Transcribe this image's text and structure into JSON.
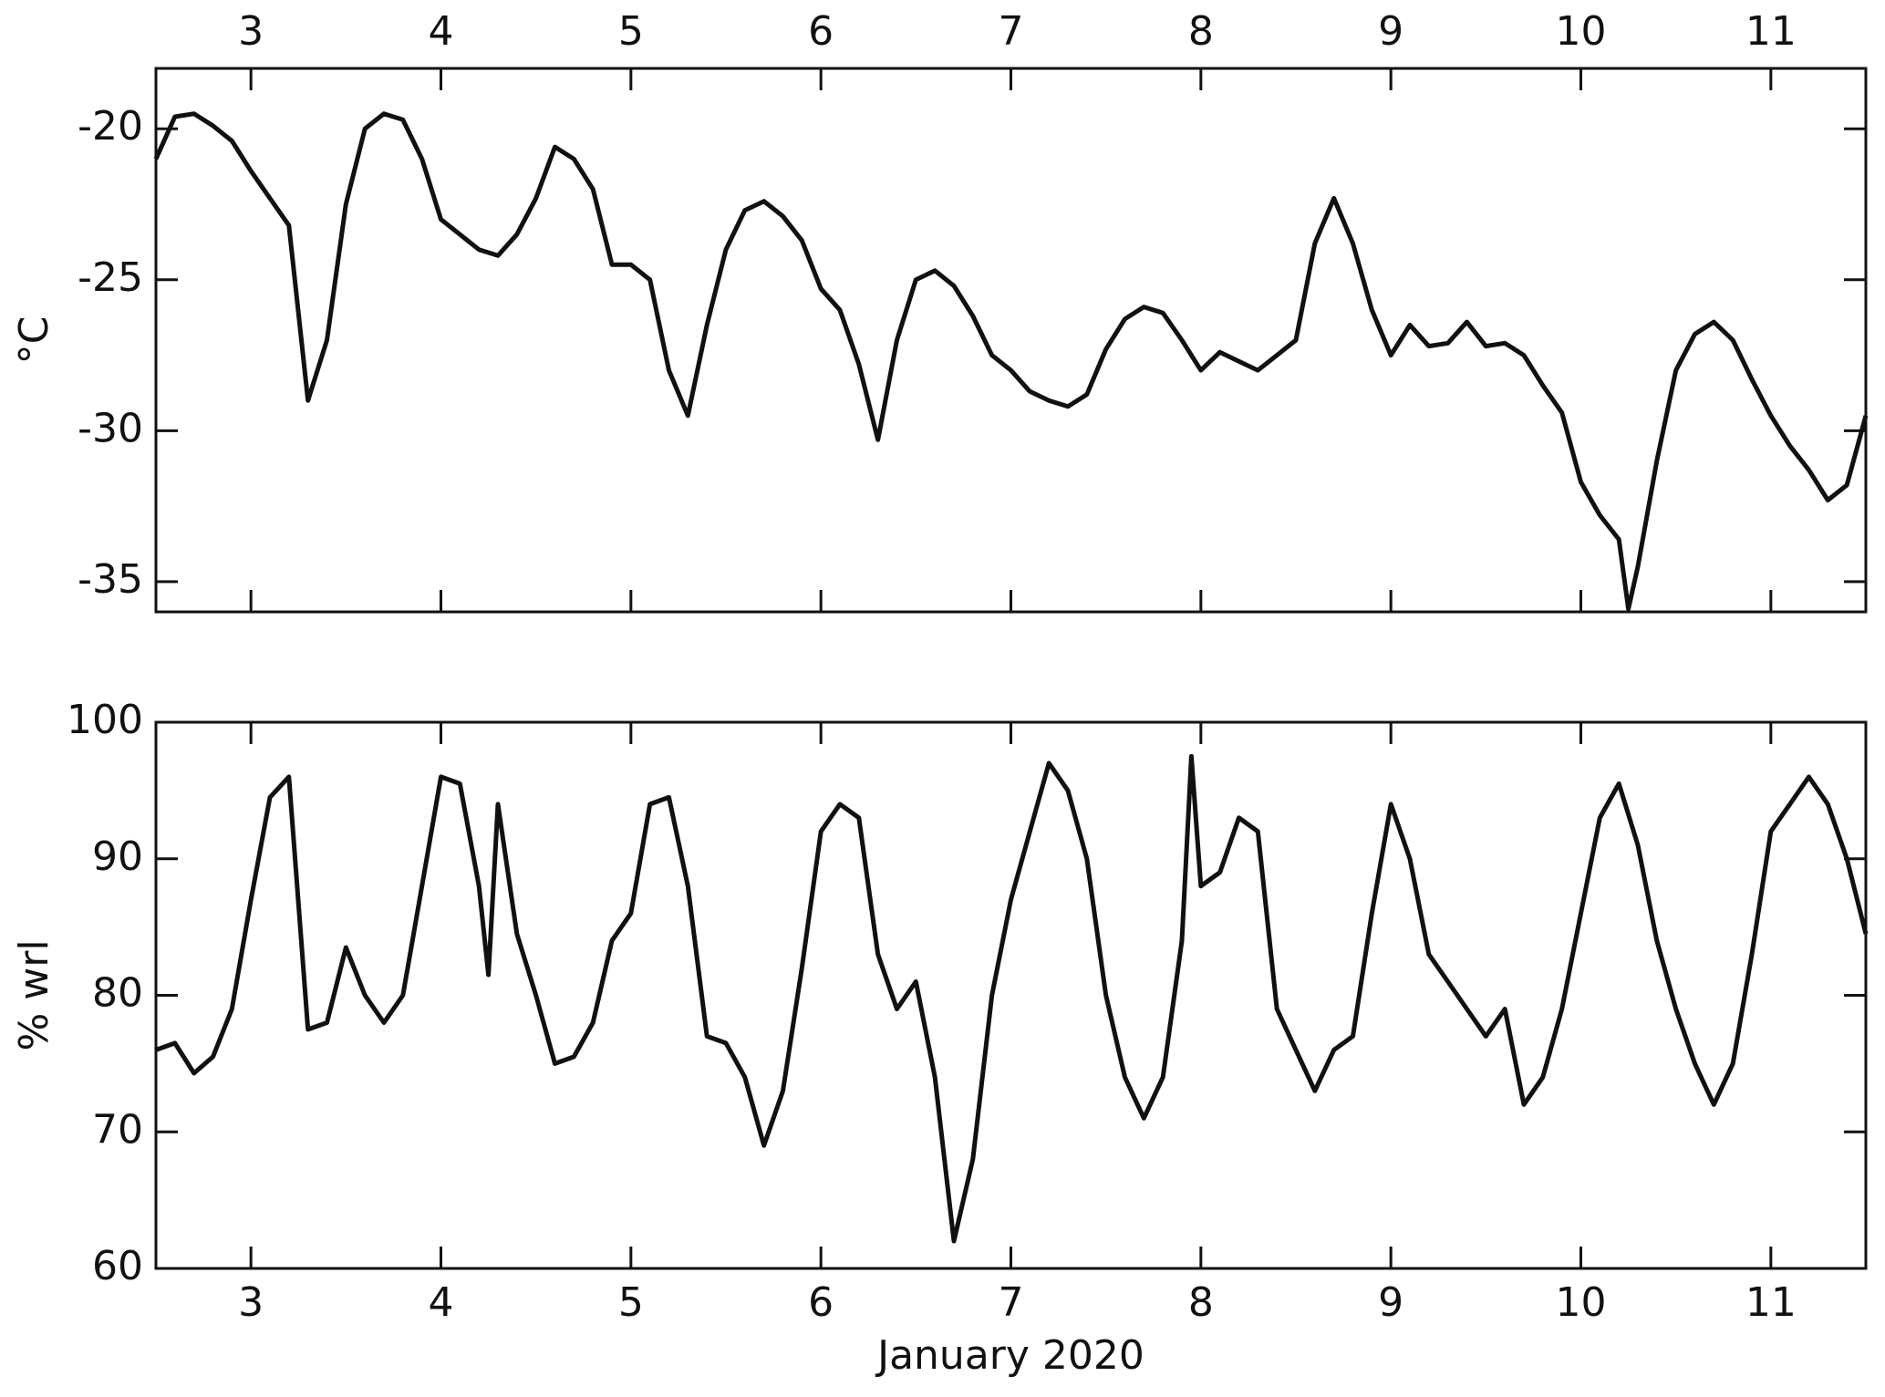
{
  "chart_data": [
    {
      "type": "line",
      "ylabel": "°C",
      "xtick_position": "top",
      "xlim": [
        2.5,
        11.5
      ],
      "xticks": [
        3,
        4,
        5,
        6,
        7,
        8,
        9,
        10,
        11
      ],
      "ylim": [
        -36,
        -18
      ],
      "yticks": [
        -20,
        -25,
        -30,
        -35
      ],
      "x": [
        2.5,
        2.6,
        2.7,
        2.8,
        2.9,
        3.0,
        3.1,
        3.2,
        3.3,
        3.4,
        3.5,
        3.6,
        3.7,
        3.8,
        3.9,
        4.0,
        4.1,
        4.2,
        4.3,
        4.4,
        4.5,
        4.6,
        4.7,
        4.8,
        4.9,
        5.0,
        5.1,
        5.2,
        5.3,
        5.4,
        5.5,
        5.6,
        5.7,
        5.8,
        5.9,
        6.0,
        6.1,
        6.2,
        6.3,
        6.4,
        6.5,
        6.6,
        6.7,
        6.8,
        6.9,
        7.0,
        7.1,
        7.2,
        7.3,
        7.4,
        7.5,
        7.6,
        7.7,
        7.8,
        7.9,
        8.0,
        8.1,
        8.2,
        8.3,
        8.4,
        8.5,
        8.6,
        8.7,
        8.8,
        8.9,
        9.0,
        9.1,
        9.2,
        9.3,
        9.4,
        9.5,
        9.6,
        9.7,
        9.8,
        9.9,
        10.0,
        10.1,
        10.2,
        10.25,
        10.3,
        10.4,
        10.5,
        10.6,
        10.7,
        10.8,
        10.9,
        11.0,
        11.1,
        11.2,
        11.3,
        11.4,
        11.5
      ],
      "series": [
        {
          "color": "#111111",
          "values": [
            -21.0,
            -19.6,
            -19.5,
            -19.9,
            -20.4,
            -21.4,
            -22.3,
            -23.2,
            -29.0,
            -27.0,
            -22.5,
            -20.0,
            -19.5,
            -19.7,
            -21.0,
            -23.0,
            -23.5,
            -24.0,
            -24.2,
            -23.5,
            -22.3,
            -20.6,
            -21.0,
            -22.0,
            -24.5,
            -24.5,
            -25.0,
            -28.0,
            -29.5,
            -26.5,
            -24.0,
            -22.7,
            -22.4,
            -22.9,
            -23.7,
            -25.3,
            -26.0,
            -27.8,
            -30.3,
            -27.0,
            -25.0,
            -24.7,
            -25.2,
            -26.2,
            -27.5,
            -28.0,
            -28.7,
            -29.0,
            -29.2,
            -28.8,
            -27.3,
            -26.3,
            -25.9,
            -26.1,
            -27.0,
            -28.0,
            -27.4,
            -27.7,
            -28.0,
            -27.5,
            -27.0,
            -23.8,
            -22.3,
            -23.8,
            -26.0,
            -27.5,
            -26.5,
            -27.2,
            -27.1,
            -26.4,
            -27.2,
            -27.1,
            -27.5,
            -28.5,
            -29.4,
            -31.7,
            -32.8,
            -33.6,
            -35.9,
            -34.5,
            -31.0,
            -28.0,
            -26.8,
            -26.4,
            -27.0,
            -28.3,
            -29.5,
            -30.5,
            -31.3,
            -32.3,
            -31.8,
            -29.5
          ]
        }
      ]
    },
    {
      "type": "line",
      "ylabel": "% wrl",
      "xtick_position": "bottom",
      "xlabel": "January 2020",
      "xlim": [
        2.5,
        11.5
      ],
      "xticks": [
        3,
        4,
        5,
        6,
        7,
        8,
        9,
        10,
        11
      ],
      "ylim": [
        60,
        100
      ],
      "yticks": [
        60,
        70,
        80,
        90,
        100
      ],
      "x": [
        2.5,
        2.6,
        2.7,
        2.8,
        2.9,
        3.0,
        3.1,
        3.2,
        3.3,
        3.4,
        3.5,
        3.6,
        3.7,
        3.8,
        3.9,
        4.0,
        4.1,
        4.2,
        4.25,
        4.3,
        4.4,
        4.5,
        4.6,
        4.7,
        4.8,
        4.9,
        5.0,
        5.1,
        5.2,
        5.3,
        5.4,
        5.5,
        5.6,
        5.7,
        5.8,
        5.9,
        6.0,
        6.1,
        6.2,
        6.3,
        6.4,
        6.5,
        6.6,
        6.7,
        6.8,
        6.9,
        7.0,
        7.1,
        7.2,
        7.3,
        7.4,
        7.5,
        7.6,
        7.7,
        7.8,
        7.9,
        7.95,
        8.0,
        8.1,
        8.2,
        8.3,
        8.4,
        8.5,
        8.6,
        8.7,
        8.8,
        8.9,
        9.0,
        9.1,
        9.2,
        9.3,
        9.4,
        9.5,
        9.6,
        9.7,
        9.8,
        9.9,
        10.0,
        10.1,
        10.2,
        10.3,
        10.4,
        10.5,
        10.6,
        10.7,
        10.8,
        10.9,
        11.0,
        11.1,
        11.2,
        11.3,
        11.4,
        11.5
      ],
      "series": [
        {
          "color": "#111111",
          "values": [
            76,
            76.5,
            74.3,
            75.5,
            79,
            87,
            94.5,
            96,
            77.5,
            78,
            83.5,
            80,
            78,
            80,
            88,
            96,
            95.5,
            88,
            81.5,
            94,
            84.5,
            80,
            75,
            75.5,
            78,
            84,
            86,
            94,
            94.5,
            88,
            77,
            76.5,
            74,
            69,
            73,
            82,
            92,
            94,
            93,
            83,
            79,
            81,
            74,
            62,
            68,
            80,
            87,
            92,
            97,
            95,
            90,
            80,
            74,
            71,
            74,
            84,
            97.5,
            88,
            89,
            93,
            92,
            79,
            76,
            73,
            76,
            77,
            86,
            94,
            90,
            83,
            81,
            79,
            77,
            79,
            72,
            74,
            79,
            86,
            93,
            95.5,
            91,
            84,
            79,
            75,
            72,
            75,
            83,
            92,
            94,
            96,
            94,
            90,
            84.5
          ]
        }
      ]
    }
  ]
}
